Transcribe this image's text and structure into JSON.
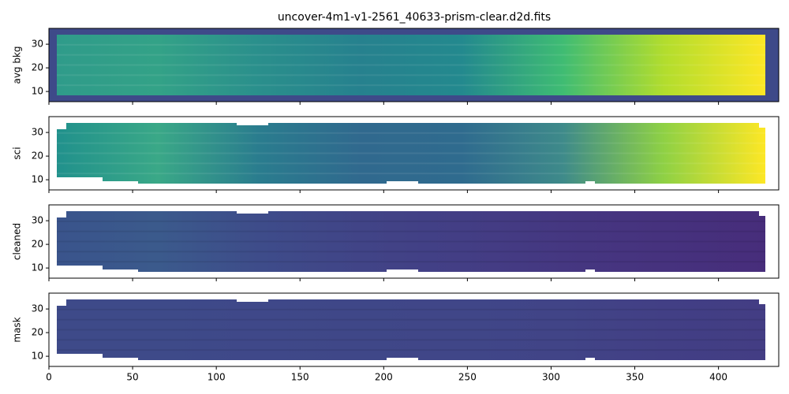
{
  "chart_data": [
    {
      "type": "heatmap",
      "title": "uncover-4m1-v1-2561_40633-prism-clear.d2d.fits",
      "ylabel": "avg bkg",
      "xlim": [
        0,
        436
      ],
      "xticks": [
        0,
        50,
        100,
        150,
        200,
        250,
        300,
        350,
        400
      ],
      "ylim": [
        5.7,
        36.7
      ],
      "yticks": [
        10,
        20,
        30
      ],
      "colors": [
        "#2f9b8a",
        "#33a287",
        "#2a8f8c",
        "#26818e",
        "#23898e",
        "#3fbc73",
        "#b2dd2d",
        "#fde725"
      ]
    },
    {
      "type": "heatmap",
      "ylabel": "sci",
      "xlim": [
        0,
        436
      ],
      "xticks": [
        0,
        50,
        100,
        150,
        200,
        250,
        300,
        350,
        400
      ],
      "ylim": [
        5.7,
        36.7
      ],
      "yticks": [
        10,
        20,
        30
      ],
      "colors": [
        "#21918c",
        "#3aa887",
        "#2a7c8e",
        "#30698e",
        "#2f6b8e",
        "#3e8a8a",
        "#8fd144",
        "#fde725"
      ]
    },
    {
      "type": "heatmap",
      "ylabel": "cleaned",
      "xlim": [
        0,
        436
      ],
      "xticks": [
        0,
        50,
        100,
        150,
        200,
        250,
        300,
        350,
        400
      ],
      "ylim": [
        5.7,
        36.7
      ],
      "yticks": [
        10,
        20,
        30
      ],
      "colors": [
        "#3a548c",
        "#3b5a8c",
        "#3e4c8a",
        "#414487",
        "#433e85",
        "#453781",
        "#46327e",
        "#472d7b"
      ]
    },
    {
      "type": "heatmap",
      "ylabel": "mask",
      "xlim": [
        0,
        436
      ],
      "xticks": [
        0,
        50,
        100,
        150,
        200,
        250,
        300,
        350,
        400
      ],
      "ylim": [
        5.7,
        36.7
      ],
      "yticks": [
        10,
        20,
        30
      ],
      "colors": [
        "#3e4a89",
        "#3e4a89",
        "#3f4889",
        "#3f4788",
        "#404688",
        "#414487",
        "#423f85",
        "#433d84"
      ]
    }
  ]
}
